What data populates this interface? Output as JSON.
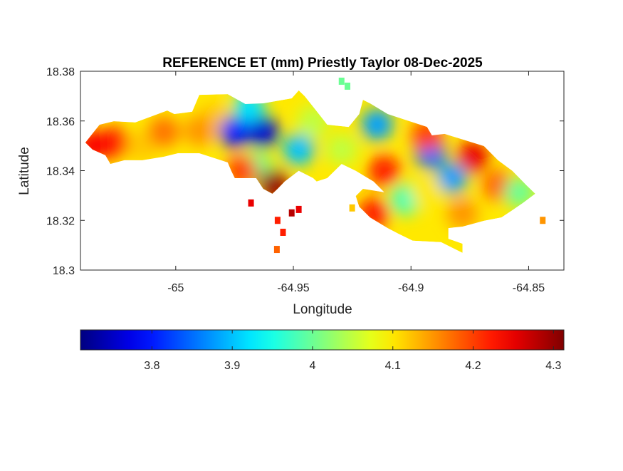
{
  "chart_data": {
    "type": "heatmap",
    "title": "REFERENCE ET (mm) Priestly Taylor 08-Dec-2025",
    "xlabel": "Longitude",
    "ylabel": "Latitude",
    "xlim": [
      -65.0405,
      -64.835
    ],
    "ylim": [
      18.3,
      18.38
    ],
    "xticks": [
      -65,
      -64.95,
      -64.9,
      -64.85
    ],
    "xtick_labels": [
      "-65",
      "-64.95",
      "-64.9",
      "-64.85"
    ],
    "yticks": [
      18.3,
      18.32,
      18.34,
      18.36,
      18.38
    ],
    "ytick_labels": [
      "18.3",
      "18.32",
      "18.34",
      "18.36",
      "18.38"
    ],
    "colormap": "jet",
    "colorbar": {
      "location": "bottom",
      "clim": [
        3.711,
        4.313
      ],
      "ticks": [
        3.8,
        3.9,
        4.0,
        4.1,
        4.2,
        4.3
      ],
      "tick_labels": [
        "3.8",
        "3.9",
        "4",
        "4.1",
        "4.2",
        "4.3"
      ]
    },
    "base_value": 4.1,
    "outline": [
      [
        -65.0384,
        18.3513
      ],
      [
        -65.0324,
        18.3585
      ],
      [
        -65.0263,
        18.3599
      ],
      [
        -65.0172,
        18.3594
      ],
      [
        -65.0036,
        18.3642
      ],
      [
        -65.0006,
        18.3628
      ],
      [
        -64.993,
        18.3637
      ],
      [
        -64.99,
        18.3705
      ],
      [
        -64.9779,
        18.3708
      ],
      [
        -64.9704,
        18.3668
      ],
      [
        -64.9628,
        18.3671
      ],
      [
        -64.9507,
        18.3691
      ],
      [
        -64.9477,
        18.3723
      ],
      [
        -64.9452,
        18.37
      ],
      [
        -64.9416,
        18.3657
      ],
      [
        -64.9356,
        18.3585
      ],
      [
        -64.9265,
        18.3576
      ],
      [
        -64.922,
        18.3628
      ],
      [
        -64.9204,
        18.3685
      ],
      [
        -64.9174,
        18.3671
      ],
      [
        -64.9099,
        18.3628
      ],
      [
        -64.8932,
        18.3576
      ],
      [
        -64.8911,
        18.3542
      ],
      [
        -64.8857,
        18.3548
      ],
      [
        -64.869,
        18.3499
      ],
      [
        -64.863,
        18.3442
      ],
      [
        -64.8569,
        18.3399
      ],
      [
        -64.8509,
        18.3341
      ],
      [
        -64.8472,
        18.3307
      ],
      [
        -64.8524,
        18.327
      ],
      [
        -64.8569,
        18.3241
      ],
      [
        -64.8615,
        18.3212
      ],
      [
        -64.869,
        18.3198
      ],
      [
        -64.8781,
        18.3175
      ],
      [
        -64.8841,
        18.3169
      ],
      [
        -64.8841,
        18.3126
      ],
      [
        -64.8781,
        18.3106
      ],
      [
        -64.8781,
        18.3069
      ],
      [
        -64.8872,
        18.3112
      ],
      [
        -64.8993,
        18.3118
      ],
      [
        -64.9053,
        18.3146
      ],
      [
        -64.9099,
        18.3169
      ],
      [
        -64.9174,
        18.3212
      ],
      [
        -64.922,
        18.3255
      ],
      [
        -64.9235,
        18.3298
      ],
      [
        -64.9204,
        18.3327
      ],
      [
        -64.9114,
        18.3313
      ],
      [
        -64.9159,
        18.3356
      ],
      [
        -64.9235,
        18.3399
      ],
      [
        -64.9295,
        18.3427
      ],
      [
        -64.9356,
        18.337
      ],
      [
        -64.9401,
        18.3356
      ],
      [
        -64.9416,
        18.337
      ],
      [
        -64.9477,
        18.3399
      ],
      [
        -64.9537,
        18.3356
      ],
      [
        -64.9567,
        18.3327
      ],
      [
        -64.9589,
        18.3307
      ],
      [
        -64.9628,
        18.3327
      ],
      [
        -64.9658,
        18.337
      ],
      [
        -64.9749,
        18.337
      ],
      [
        -64.9764,
        18.3399
      ],
      [
        -64.9779,
        18.3433
      ],
      [
        -64.99,
        18.347
      ],
      [
        -64.9991,
        18.347
      ],
      [
        -65.0051,
        18.3456
      ],
      [
        -65.0142,
        18.3442
      ],
      [
        -65.0218,
        18.3442
      ],
      [
        -65.0278,
        18.3427
      ],
      [
        -65.0299,
        18.3462
      ],
      [
        -65.0354,
        18.3485
      ]
    ],
    "blobs": [
      [
        -65.0263,
        18.3513,
        4.22
      ],
      [
        -65.0142,
        18.3499,
        4.12
      ],
      [
        -65.0051,
        18.3556,
        4.17
      ],
      [
        -64.984,
        18.3614,
        4.12
      ],
      [
        -64.9749,
        18.3556,
        3.8
      ],
      [
        -64.9628,
        18.3556,
        3.76
      ],
      [
        -64.9688,
        18.3657,
        3.92
      ],
      [
        -64.9477,
        18.3485,
        3.9
      ],
      [
        -64.9416,
        18.3599,
        4.05
      ],
      [
        -64.9658,
        18.3413,
        4.0
      ],
      [
        -64.9583,
        18.3341,
        4.3
      ],
      [
        -64.9719,
        18.3399,
        4.2
      ],
      [
        -64.9144,
        18.3585,
        3.88
      ],
      [
        -64.9114,
        18.3399,
        4.22
      ],
      [
        -64.9023,
        18.3284,
        3.98
      ],
      [
        -64.9159,
        18.3227,
        4.22
      ],
      [
        -64.8917,
        18.347,
        3.85
      ],
      [
        -64.8826,
        18.337,
        3.88
      ],
      [
        -64.8736,
        18.3456,
        4.25
      ],
      [
        -64.863,
        18.3341,
        4.18
      ],
      [
        -64.8539,
        18.3313,
        4.0
      ],
      [
        -64.8932,
        18.3313,
        4.1
      ],
      [
        -64.9295,
        18.3485,
        4.05
      ],
      [
        -64.8932,
        18.3542,
        4.2
      ],
      [
        -64.8781,
        18.3227,
        4.15
      ],
      [
        -65.0354,
        18.35,
        4.24
      ],
      [
        -64.99,
        18.356,
        4.15
      ]
    ],
    "islets": [
      [
        -64.9477,
        18.3244,
        4.25
      ],
      [
        -64.9544,
        18.3152,
        4.22
      ],
      [
        -64.957,
        18.3083,
        4.18
      ],
      [
        -64.9567,
        18.32,
        4.22
      ],
      [
        -64.9507,
        18.323,
        4.28
      ],
      [
        -64.925,
        18.325,
        4.12
      ],
      [
        -64.9295,
        18.376,
        4.0
      ],
      [
        -64.927,
        18.374,
        4.0
      ],
      [
        -64.844,
        18.32,
        4.15
      ],
      [
        -64.968,
        18.327,
        4.25
      ]
    ]
  }
}
